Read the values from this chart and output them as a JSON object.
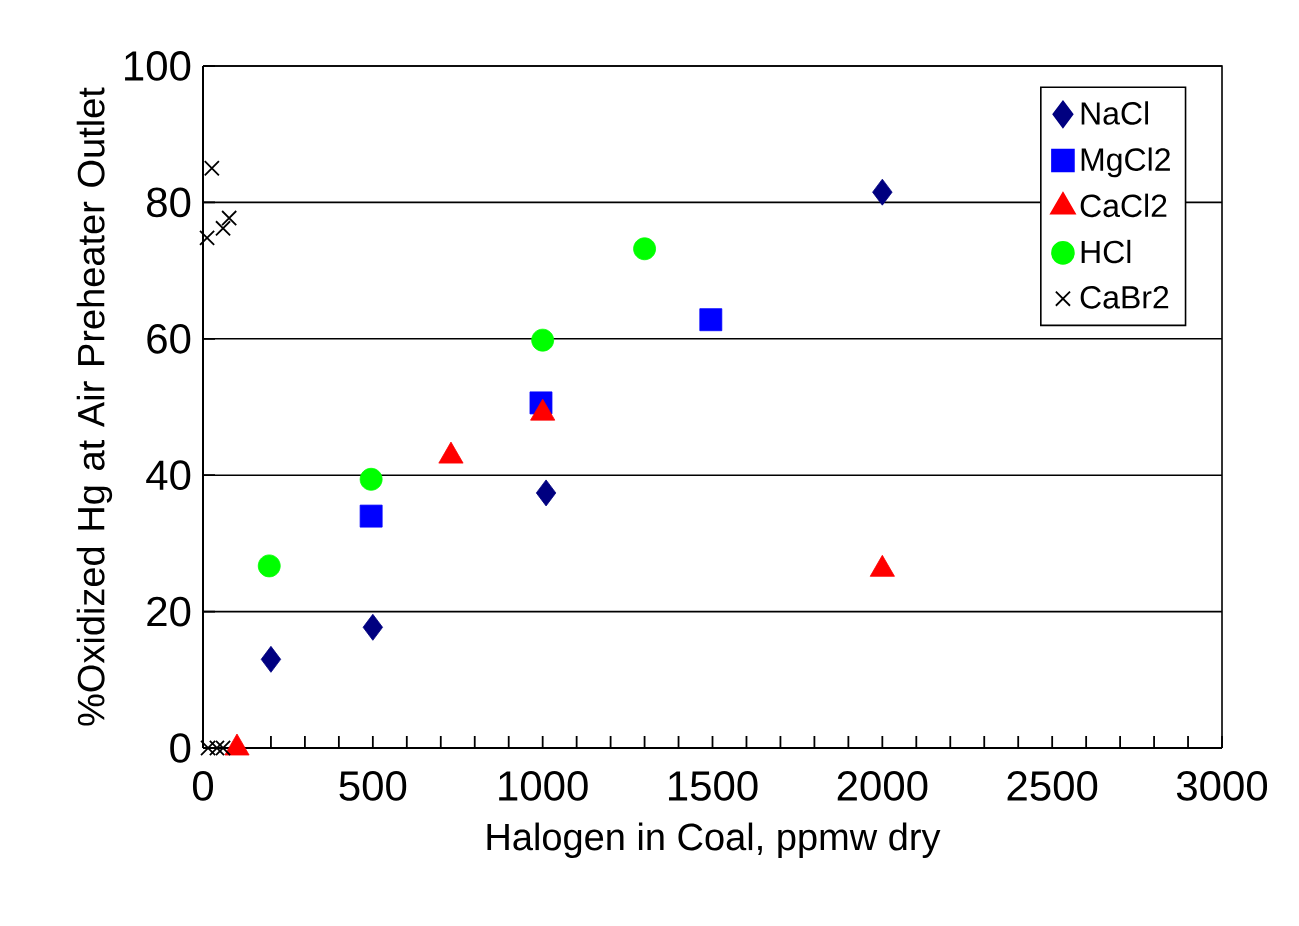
{
  "chart_data": {
    "type": "scatter",
    "xlabel": "Halogen in Coal, ppmw dry",
    "ylabel": "%Oxidized Hg at Air Preheater Outlet",
    "xlim": [
      0,
      3000
    ],
    "ylim": [
      0,
      100
    ],
    "xticks": [
      0,
      500,
      1000,
      1500,
      2000,
      2500,
      3000
    ],
    "yticks": [
      0,
      20,
      40,
      60,
      80,
      100
    ],
    "grid": "y",
    "legend": "top right",
    "series": [
      {
        "name": "NaCl",
        "color": "#000080",
        "marker": "diamond",
        "x": [
          200,
          500,
          1010,
          2000
        ],
        "values": [
          13.0,
          17.7,
          37.4,
          81.5
        ]
      },
      {
        "name": "MgCl2",
        "color": "#0000ff",
        "marker": "square",
        "x": [
          495,
          995,
          1495
        ],
        "values": [
          34.0,
          50.6,
          62.8
        ]
      },
      {
        "name": "CaCl2",
        "color": "#ff0000",
        "marker": "triangle",
        "x": [
          100,
          730,
          1000,
          2000
        ],
        "values": [
          0,
          42.8,
          49.1,
          26.2
        ]
      },
      {
        "name": "HCl",
        "color": "#00ff00",
        "marker": "circle",
        "x": [
          195,
          495,
          1000,
          1300
        ],
        "values": [
          26.7,
          39.4,
          59.8,
          73.2
        ]
      },
      {
        "name": "CaBr2",
        "color": "#000000",
        "marker": "cross",
        "x": [
          26,
          12,
          59,
          77,
          15,
          41,
          59
        ],
        "values": [
          85.0,
          74.8,
          76.2,
          77.7,
          0,
          0,
          0
        ]
      }
    ]
  }
}
